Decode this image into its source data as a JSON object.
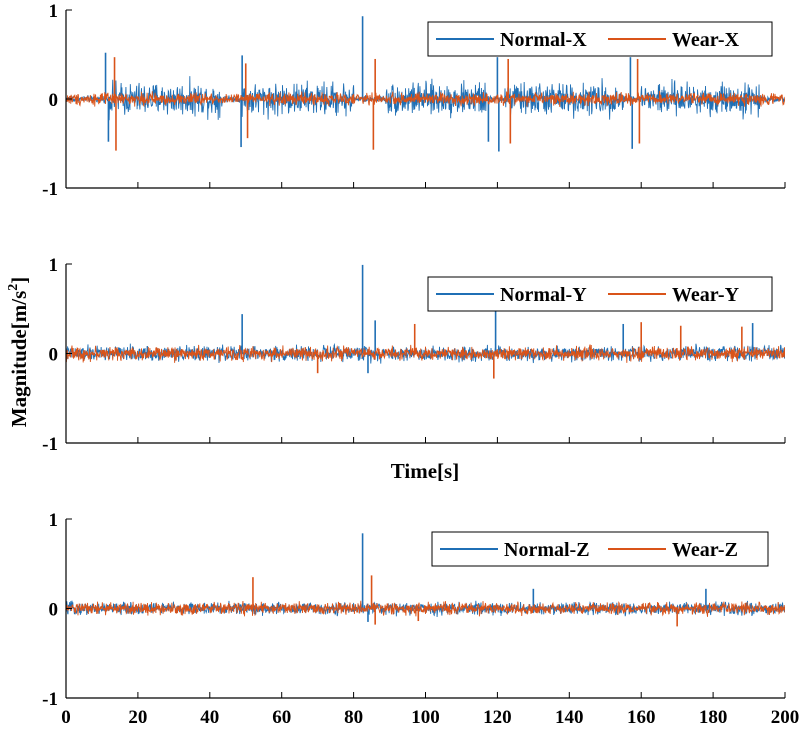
{
  "chart_data": {
    "type": "line",
    "ylabel": "Magnitude[m/s",
    "ylabel_sup": "2",
    "ylabel_end": "]",
    "middle_xlabel": "Time[s]",
    "panels": [
      {
        "id": "x",
        "legend_position": "top-right",
        "series": [
          {
            "name": "Normal-X",
            "color": "#1f6fb5",
            "base_amp": 0.05,
            "active_amp": 0.24,
            "active_intervals": [
              [
                12,
                44
              ],
              [
                49,
                80
              ],
              [
                89,
                117
              ],
              [
                122,
                155
              ],
              [
                160,
                193
              ]
            ],
            "spikes": [
              [
                11,
                0.52
              ],
              [
                11.8,
                -0.48
              ],
              [
                49,
                0.49
              ],
              [
                48.7,
                -0.54
              ],
              [
                82.5,
                0.93
              ],
              [
                117.5,
                -0.48
              ],
              [
                120,
                0.47
              ],
              [
                120.4,
                -0.59
              ],
              [
                157,
                0.47
              ],
              [
                157.5,
                -0.56
              ]
            ]
          },
          {
            "name": "Wear-X",
            "color": "#d95319",
            "base_amp": 0.09,
            "active_amp": 0.1,
            "active_intervals": [],
            "spikes": [
              [
                13.5,
                0.47
              ],
              [
                13.9,
                -0.58
              ],
              [
                50,
                0.4
              ],
              [
                50.5,
                -0.44
              ],
              [
                85.5,
                -0.57
              ],
              [
                86,
                0.45
              ],
              [
                123,
                0.45
              ],
              [
                123.6,
                -0.5
              ],
              [
                159,
                0.45
              ],
              [
                159.5,
                -0.5
              ]
            ]
          }
        ]
      },
      {
        "id": "y",
        "legend_position": "top-right",
        "series": [
          {
            "name": "Normal-Y",
            "color": "#1f6fb5",
            "base_amp": 0.11,
            "active_amp": 0.11,
            "active_intervals": [],
            "spikes": [
              [
                49,
                0.44
              ],
              [
                82.5,
                0.99
              ],
              [
                86,
                0.37
              ],
              [
                119.5,
                0.47
              ],
              [
                155,
                0.33
              ],
              [
                191,
                0.34
              ],
              [
                84,
                -0.22
              ]
            ]
          },
          {
            "name": "Wear-Y",
            "color": "#d95319",
            "base_amp": 0.1,
            "active_amp": 0.1,
            "active_intervals": [],
            "spikes": [
              [
                97,
                0.33
              ],
              [
                119,
                -0.28
              ],
              [
                160,
                0.35
              ],
              [
                171,
                0.31
              ],
              [
                188,
                0.3
              ],
              [
                70,
                -0.22
              ]
            ]
          }
        ]
      },
      {
        "id": "z",
        "legend_position": "top-right",
        "series": [
          {
            "name": "Normal-Z",
            "color": "#1f6fb5",
            "base_amp": 0.09,
            "active_amp": 0.09,
            "active_intervals": [],
            "spikes": [
              [
                82.5,
                0.84
              ],
              [
                84,
                -0.15
              ],
              [
                130,
                0.22
              ],
              [
                178,
                0.22
              ]
            ]
          },
          {
            "name": "Wear-Z",
            "color": "#d95319",
            "base_amp": 0.09,
            "active_amp": 0.09,
            "active_intervals": [],
            "spikes": [
              [
                52,
                0.35
              ],
              [
                85,
                0.37
              ],
              [
                86,
                -0.18
              ],
              [
                98,
                -0.14
              ],
              [
                170,
                -0.2
              ]
            ]
          }
        ]
      }
    ],
    "x": {
      "min": 0,
      "max": 200,
      "ticks": [
        0,
        20,
        40,
        60,
        80,
        100,
        120,
        140,
        160,
        180,
        200
      ]
    },
    "y": {
      "min": -1,
      "max": 1,
      "ticks": [
        -1,
        0,
        1
      ]
    }
  }
}
